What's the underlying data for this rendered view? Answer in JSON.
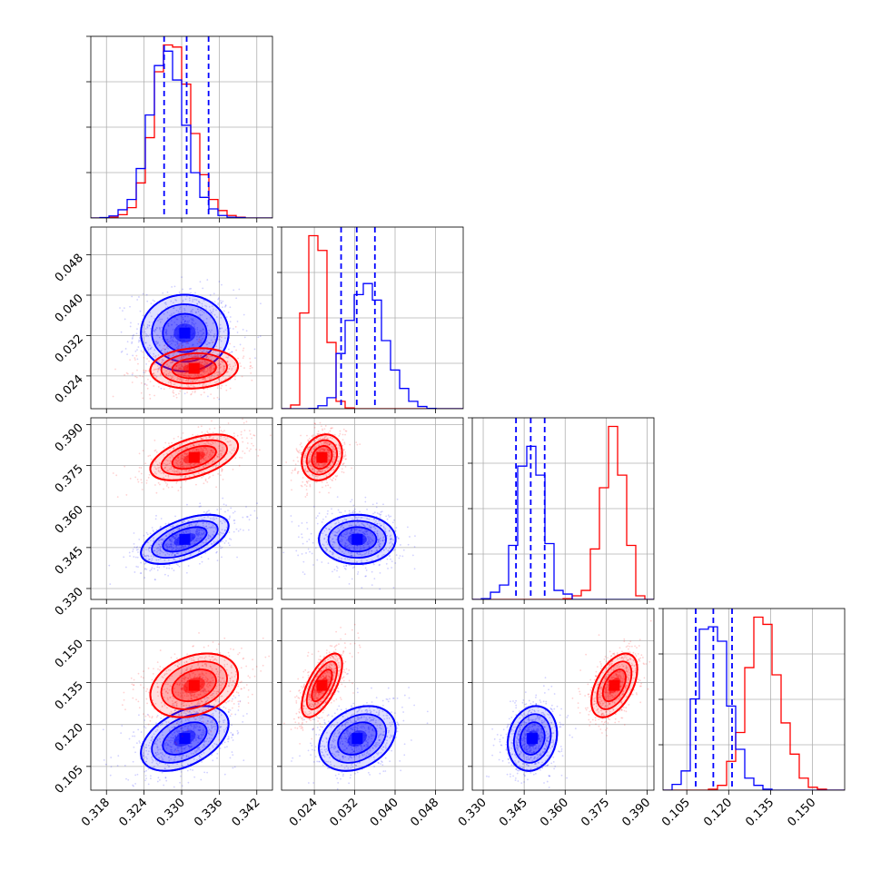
{
  "chart_data": {
    "type": "corner",
    "grid": true,
    "series": [
      {
        "name": "",
        "color": "#0000ff",
        "means": [
          0.3305,
          0.0325,
          0.348,
          0.115
        ],
        "sds": [
          0.0035,
          0.0038,
          0.0045,
          0.0058
        ],
        "corr": [
          [
            1,
            0,
            0.55,
            0.45
          ],
          [
            0,
            1,
            0,
            0.3
          ],
          [
            0.55,
            0,
            1,
            0.15
          ],
          [
            0.45,
            0.3,
            0.15,
            1
          ]
        ]
      },
      {
        "name": "",
        "color": "#ff0000",
        "means": [
          0.332,
          0.0255,
          0.378,
          0.134
        ],
        "sds": [
          0.0035,
          0.002,
          0.0042,
          0.0057
        ],
        "corr": [
          [
            1,
            0.1,
            0.5,
            0.3
          ],
          [
            0.1,
            1,
            0.2,
            0.65
          ],
          [
            0.5,
            0.2,
            1,
            0.5
          ],
          [
            0.3,
            0.65,
            0.5,
            1
          ]
        ]
      }
    ],
    "quantile_lines": [
      [
        0.3272,
        0.3308,
        0.3343
      ],
      [
        0.0293,
        0.0324,
        0.036
      ],
      [
        0.342,
        0.3474,
        0.3525
      ],
      [
        0.1082,
        0.1145,
        0.1212
      ]
    ],
    "quantile_line_color": "#0000ff",
    "params": [
      {
        "range": [
          0.3155,
          0.3445
        ],
        "ticks": [
          "0.318",
          "0.324",
          "0.330",
          "0.336",
          "0.342"
        ]
      },
      {
        "range": [
          0.0175,
          0.0535
        ],
        "ticks": [
          "0.024",
          "0.032",
          "0.040",
          "0.048"
        ]
      },
      {
        "range": [
          0.326,
          0.3925
        ],
        "ticks": [
          "0.330",
          "0.345",
          "0.360",
          "0.375",
          "0.390"
        ]
      },
      {
        "range": [
          0.0965,
          0.1615
        ],
        "ticks": [
          "0.105",
          "0.120",
          "0.135",
          "0.150"
        ]
      }
    ],
    "histograms": [
      {
        "bins": [
          0.3155,
          0.3445,
          20
        ],
        "blue": [
          0,
          1,
          5,
          20,
          45,
          120,
          250,
          370,
          405,
          335,
          225,
          110,
          50,
          22,
          6,
          2,
          1,
          0,
          0,
          0
        ],
        "red": [
          0,
          0,
          2,
          8,
          25,
          85,
          195,
          355,
          420,
          415,
          325,
          205,
          105,
          45,
          18,
          6,
          2,
          0,
          0,
          0
        ]
      },
      {
        "bins": [
          0.0175,
          0.0535,
          20
        ],
        "blue": [
          0,
          0,
          0,
          1,
          8,
          30,
          150,
          240,
          310,
          340,
          295,
          185,
          105,
          55,
          20,
          6,
          1,
          0,
          0,
          0
        ],
        "red": [
          0,
          10,
          260,
          470,
          430,
          180,
          20,
          2,
          0,
          0,
          0,
          0,
          0,
          0,
          0,
          0,
          0,
          0,
          0,
          0
        ]
      },
      {
        "bins": [
          0.326,
          0.3925,
          20
        ],
        "blue": [
          0,
          2,
          20,
          40,
          150,
          370,
          425,
          345,
          155,
          25,
          15,
          0,
          0,
          0,
          0,
          0,
          0,
          0,
          0,
          0
        ],
        "red": [
          0,
          0,
          0,
          0,
          0,
          0,
          0,
          0,
          0,
          0,
          2,
          10,
          25,
          140,
          310,
          480,
          345,
          150,
          10,
          0
        ]
      },
      {
        "bins": [
          0.0965,
          0.1615,
          20
        ],
        "blue": [
          0,
          12,
          40,
          190,
          335,
          340,
          310,
          175,
          85,
          25,
          10,
          2,
          0,
          0,
          0,
          0,
          0,
          0,
          0,
          0
        ],
        "red": [
          0,
          0,
          0,
          0,
          0,
          2,
          10,
          60,
          120,
          255,
          360,
          345,
          240,
          140,
          75,
          25,
          6,
          2,
          0,
          0
        ]
      }
    ]
  }
}
